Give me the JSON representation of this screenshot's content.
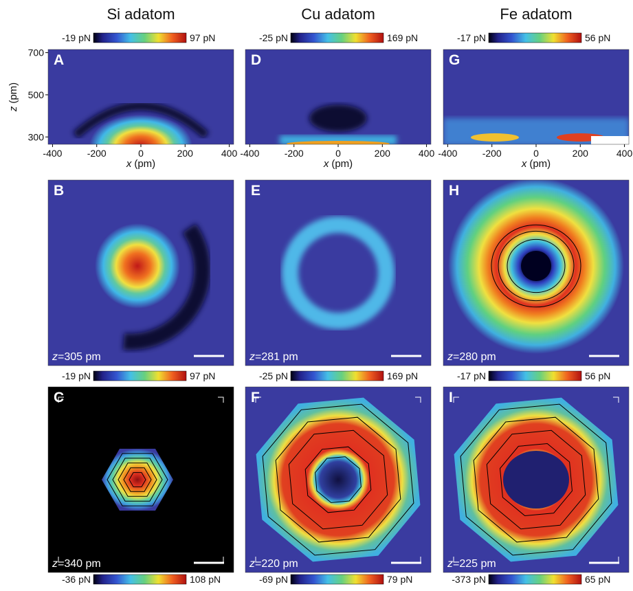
{
  "columns": [
    {
      "title": "Si adatom",
      "colorbars": [
        {
          "min": "-19 pN",
          "max": "97 pN"
        },
        {
          "min": "-19 pN",
          "max": "97 pN"
        },
        {
          "min": "-36 pN",
          "max": "108 pN"
        }
      ],
      "panels": [
        {
          "letter": "A"
        },
        {
          "letter": "B",
          "z_label": {
            "var": "z",
            "rest": "=305 pm"
          }
        },
        {
          "letter": "C",
          "z_label": {
            "var": "z",
            "rest": "=340 pm"
          }
        }
      ]
    },
    {
      "title": "Cu adatom",
      "colorbars": [
        {
          "min": "-25 pN",
          "max": "169 pN"
        },
        {
          "min": "-25 pN",
          "max": "169 pN"
        },
        {
          "min": "-69 pN",
          "max": "79 pN"
        }
      ],
      "panels": [
        {
          "letter": "D"
        },
        {
          "letter": "E",
          "z_label": {
            "var": "z",
            "rest": "=281 pm"
          }
        },
        {
          "letter": "F",
          "z_label": {
            "var": "z",
            "rest": "=220 pm"
          }
        }
      ]
    },
    {
      "title": "Fe adatom",
      "colorbars": [
        {
          "min": "-17 pN",
          "max": "56 pN"
        },
        {
          "min": "-17 pN",
          "max": "56 pN"
        },
        {
          "min": "-373 pN",
          "max": "65 pN"
        }
      ],
      "panels": [
        {
          "letter": "G"
        },
        {
          "letter": "H",
          "z_label": {
            "var": "z",
            "rest": "=280 pm"
          }
        },
        {
          "letter": "I",
          "z_label": {
            "var": "z",
            "rest": "=225 pm"
          }
        }
      ]
    }
  ],
  "x_axis": {
    "var": "x",
    "unit": "(pm)",
    "ticks": [
      -400,
      -200,
      0,
      200,
      400
    ],
    "lim": [
      -420,
      420
    ]
  },
  "z_axis": {
    "var": "z",
    "unit": "(pm)",
    "ticks": [
      300,
      500,
      700
    ],
    "lim": [
      265,
      715
    ]
  }
}
